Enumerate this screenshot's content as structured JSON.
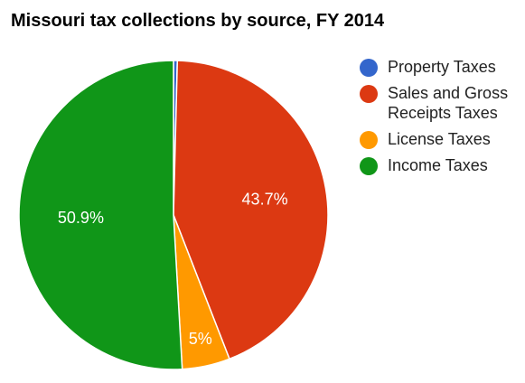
{
  "chart_data": {
    "type": "pie",
    "title": "Missouri tax collections by source, FY 2014",
    "slices": [
      {
        "label": "Property Taxes",
        "value": 0.4,
        "display": "",
        "color": "#3366cc"
      },
      {
        "label": "Sales and Gross Receipts Taxes",
        "value": 43.7,
        "display": "43.7%",
        "color": "#dc3912"
      },
      {
        "label": "License Taxes",
        "value": 5.0,
        "display": "5%",
        "color": "#ff9900"
      },
      {
        "label": "Income Taxes",
        "value": 50.9,
        "display": "50.9%",
        "color": "#109618"
      }
    ],
    "legend": {
      "position": "right",
      "items": [
        "Property Taxes",
        "Sales and Gross Receipts Taxes",
        "License Taxes",
        "Income Taxes"
      ]
    }
  }
}
